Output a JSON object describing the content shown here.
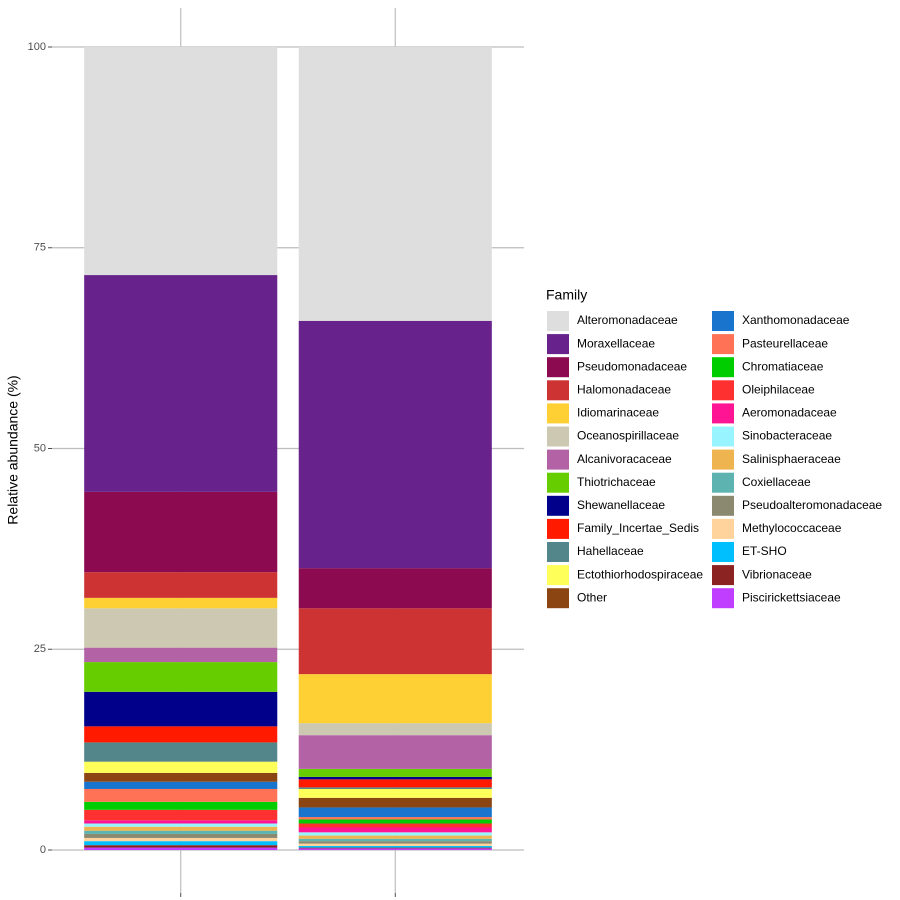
{
  "chart_data": {
    "type": "stacked_bar",
    "y_label": "Relative abundance (%)",
    "legend_title": "Family",
    "legend": "right",
    "grid": true,
    "categories": [
      null,
      null
    ],
    "ylim": [
      0,
      100
    ],
    "yticks": [
      0,
      25,
      50,
      75,
      100
    ],
    "series": [
      {
        "name": "Alteromonadaceae",
        "color": "#DEDEDE",
        "values": [
          28.4,
          34.1
        ]
      },
      {
        "name": "Moraxellaceae",
        "color": "#68228B",
        "values": [
          27.0,
          30.8
        ]
      },
      {
        "name": "Pseudomonadaceae",
        "color": "#8B0A50",
        "values": [
          10.0,
          5.0
        ]
      },
      {
        "name": "Halomonadaceae",
        "color": "#CD3333",
        "values": [
          3.2,
          8.2
        ]
      },
      {
        "name": "Idiomarinaceae",
        "color": "#FFD034",
        "values": [
          1.3,
          6.1
        ]
      },
      {
        "name": "Oceanospirillaceae",
        "color": "#CDC8B1",
        "values": [
          4.9,
          1.5
        ]
      },
      {
        "name": "Alcanivoracaceae",
        "color": "#B462A6",
        "values": [
          1.8,
          4.2
        ]
      },
      {
        "name": "Thiotrichaceae",
        "color": "#66CD00",
        "values": [
          3.7,
          1.0
        ]
      },
      {
        "name": "Shewanellaceae",
        "color": "#00008B",
        "values": [
          4.3,
          0.3
        ]
      },
      {
        "name": "Family_Incertae_Sedis",
        "color": "#FF1A00",
        "values": [
          2.0,
          1.0
        ]
      },
      {
        "name": "Hahellaceae",
        "color": "#53868B",
        "values": [
          2.4,
          0.2
        ]
      },
      {
        "name": "Ectothiorhodospiraceae",
        "color": "#FFFF5A",
        "values": [
          1.4,
          1.1
        ]
      },
      {
        "name": "Other",
        "color": "#8B4513",
        "values": [
          1.1,
          1.2
        ]
      },
      {
        "name": "Xanthomonadaceae",
        "color": "#1874CD",
        "values": [
          0.9,
          1.2
        ]
      },
      {
        "name": "Pasteurellaceae",
        "color": "#FF7256",
        "values": [
          1.6,
          0.3
        ]
      },
      {
        "name": "Chromatiaceae",
        "color": "#00CD00",
        "values": [
          1.0,
          0.5
        ]
      },
      {
        "name": "Oleiphilaceae",
        "color": "#FF3030",
        "values": [
          1.3,
          0.5
        ]
      },
      {
        "name": "Aeromonadaceae",
        "color": "#FF1493",
        "values": [
          0.4,
          0.6
        ]
      },
      {
        "name": "Sinobacteraceae",
        "color": "#98F5FF",
        "values": [
          0.4,
          0.4
        ]
      },
      {
        "name": "Salinisphaeraceae",
        "color": "#EEB450",
        "values": [
          0.5,
          0.4
        ]
      },
      {
        "name": "Coxiellaceae",
        "color": "#5CB3B0",
        "values": [
          0.4,
          0.3
        ]
      },
      {
        "name": "Pseudoalteromonadaceae",
        "color": "#8B8970",
        "values": [
          0.5,
          0.3
        ]
      },
      {
        "name": "Methylococcaceae",
        "color": "#FFD39B",
        "values": [
          0.4,
          0.3
        ]
      },
      {
        "name": "ET-SHO",
        "color": "#00BFFF",
        "values": [
          0.5,
          0.2
        ]
      },
      {
        "name": "Vibrionaceae",
        "color": "#8B2323",
        "values": [
          0.3,
          0.1
        ]
      },
      {
        "name": "Piscirickettsiaceae",
        "color": "#BF3EFF",
        "values": [
          0.3,
          0.2
        ]
      }
    ]
  }
}
